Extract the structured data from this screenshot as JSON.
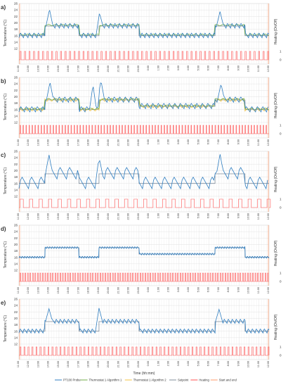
{
  "figure": {
    "x_axis_title": "Time (hh:mm)",
    "legend": [
      {
        "label": "PT100 Probe",
        "color": "#2f7ec1"
      },
      {
        "label": "Thermostat 1 Algorithm 1",
        "color": "#70ad47"
      },
      {
        "label": "Thermostat 1 Algorithm 2",
        "color": "#f5c342"
      },
      {
        "label": "Setpoint",
        "color": "#7f8c9a"
      },
      {
        "label": "Heating",
        "color": "#ff5252"
      },
      {
        "label": "Start and end",
        "color": "#ff9a6a"
      }
    ]
  },
  "chart_data": [
    {
      "type": "line",
      "panel_label": "a)",
      "ylabel": "Temperature (°C)",
      "y2label": "Heating (On/Off)",
      "ylim": [
        12,
        26
      ],
      "yticks": [
        12,
        14,
        16,
        18,
        20,
        22,
        24,
        26
      ],
      "y2ticks": [
        0,
        1
      ],
      "x_ticks": [
        "11:00",
        "12:00",
        "13:00",
        "14:00",
        "15:00",
        "16:00",
        "17:00",
        "18:00",
        "19:00",
        "20:00",
        "21:00",
        "22:00",
        "23:00",
        "0:00",
        "1:00",
        "2:00",
        "3:00",
        "4:00",
        "5:00",
        "6:00",
        "7:00",
        "8:00",
        "9:00",
        "10:00",
        "11:00",
        "12:00"
      ],
      "setpoint": [
        [
          0,
          16
        ],
        [
          2.6,
          16
        ],
        [
          2.6,
          19
        ],
        [
          6,
          19
        ],
        [
          6,
          16
        ],
        [
          8,
          16
        ],
        [
          8,
          19
        ],
        [
          12,
          19
        ],
        [
          12,
          16
        ],
        [
          19.6,
          16
        ],
        [
          19.6,
          19
        ],
        [
          22.6,
          19
        ],
        [
          22.6,
          16
        ],
        [
          25,
          16
        ]
      ],
      "probe": {
        "start": 0,
        "end": 25,
        "period": 0.45,
        "amplitude": 1.6,
        "base": 16.8,
        "spikes": [
          [
            3.05,
            24.2
          ],
          [
            8.05,
            23.0
          ],
          [
            20.1,
            23.5
          ]
        ]
      },
      "alg1": {
        "offset": 0.3,
        "amplitude": 0.4
      },
      "heating_period": 0.45,
      "heating_duty": 0.25
    },
    {
      "type": "line",
      "panel_label": "b)",
      "ylabel": "Temperature (°C)",
      "y2label": "Heating (On/Off)",
      "ylim": [
        12,
        26
      ],
      "yticks": [
        12,
        14,
        16,
        18,
        20,
        22,
        24,
        26
      ],
      "y2ticks": [
        0,
        1
      ],
      "x_ticks": [
        "11:00",
        "12:00",
        "13:00",
        "14:00",
        "15:00",
        "16:00",
        "17:00",
        "18:00",
        "19:00",
        "20:00",
        "21:00",
        "22:00",
        "23:00",
        "0:00",
        "1:00",
        "2:00",
        "3:00",
        "4:00",
        "5:00",
        "6:00",
        "7:00",
        "8:00",
        "9:00",
        "10:00",
        "11:00",
        "12:00"
      ],
      "setpoint": [
        [
          0,
          16
        ],
        [
          2.6,
          16
        ],
        [
          2.6,
          19
        ],
        [
          6,
          19
        ],
        [
          6,
          16
        ],
        [
          8,
          16
        ],
        [
          8,
          19
        ],
        [
          12,
          19
        ],
        [
          12,
          17
        ],
        [
          19.6,
          17
        ],
        [
          19.6,
          19
        ],
        [
          22.6,
          19
        ],
        [
          22.6,
          16
        ],
        [
          25,
          16
        ]
      ],
      "probe": {
        "start": 0,
        "end": 25,
        "period": 0.55,
        "amplitude": 1.8,
        "base": 17.0,
        "spikes": [
          [
            3.1,
            24.5
          ],
          [
            7.4,
            23.6
          ],
          [
            8.2,
            25.0
          ],
          [
            20.2,
            24.0
          ]
        ]
      },
      "alg1": {
        "offset": 0.2,
        "amplitude": 0.5
      },
      "alg2": {
        "offset": 0.0,
        "amplitude": 0.9
      },
      "heating_period": 0.3,
      "heating_duty": 0.2
    },
    {
      "type": "line",
      "panel_label": "c)",
      "ylabel": "Temperature (°C)",
      "y2label": "Heating (On/Off)",
      "ylim": [
        12,
        26
      ],
      "yticks": [
        12,
        14,
        16,
        18,
        20,
        22,
        24,
        26
      ],
      "y2ticks": [
        0,
        1
      ],
      "x_ticks": [
        "11:00",
        "12:00",
        "13:00",
        "14:00",
        "15:00",
        "16:00",
        "17:00",
        "18:00",
        "19:00",
        "20:00",
        "21:00",
        "22:00",
        "23:00",
        "0:00",
        "1:00",
        "2:00",
        "3:00",
        "4:00",
        "5:00",
        "6:00",
        "7:00",
        "8:00",
        "9:00",
        "10:00",
        "11:00",
        "12:00"
      ],
      "setpoint": [
        [
          0,
          16
        ],
        [
          2.6,
          16
        ],
        [
          2.6,
          19
        ],
        [
          6,
          19
        ],
        [
          6,
          16
        ],
        [
          8,
          16
        ],
        [
          8,
          19
        ],
        [
          12,
          19
        ],
        [
          12,
          16
        ],
        [
          19.6,
          16
        ],
        [
          19.6,
          19
        ],
        [
          22.6,
          19
        ],
        [
          22.6,
          16
        ],
        [
          25,
          16
        ]
      ],
      "probe": {
        "start": 0,
        "end": 25,
        "period": 0.95,
        "amplitude": 4.0,
        "base": 17.8,
        "spikes": [
          [
            3.0,
            25.0
          ],
          [
            8.0,
            24.2
          ],
          [
            20.1,
            25.2
          ]
        ]
      },
      "heating_period": 0.95,
      "heating_duty": 0.35
    },
    {
      "type": "line",
      "panel_label": "d)",
      "ylabel": "Temperature (°C)",
      "y2label": "Heating (On/Off)",
      "ylim": [
        12,
        26
      ],
      "yticks": [
        12,
        14,
        16,
        18,
        20,
        22,
        24,
        26
      ],
      "y2ticks": [
        0,
        1
      ],
      "x_ticks": [
        "11:00",
        "12:00",
        "13:00",
        "14:00",
        "15:00",
        "16:00",
        "17:00",
        "18:00",
        "19:00",
        "20:00",
        "21:00",
        "22:00",
        "23:00",
        "0:00",
        "1:00",
        "2:00",
        "3:00",
        "4:00",
        "5:00",
        "6:00",
        "7:00",
        "8:00",
        "9:00",
        "10:00",
        "11:00",
        "12:00"
      ],
      "setpoint": [
        [
          0,
          16
        ],
        [
          2.6,
          16
        ],
        [
          2.6,
          19
        ],
        [
          6,
          19
        ],
        [
          6,
          16
        ],
        [
          8,
          16
        ],
        [
          8,
          19
        ],
        [
          12,
          19
        ],
        [
          12,
          17
        ],
        [
          19.6,
          17
        ],
        [
          19.6,
          19
        ],
        [
          22.6,
          19
        ],
        [
          22.6,
          16
        ],
        [
          25,
          16
        ]
      ],
      "probe": {
        "start": 0,
        "end": 25,
        "period": 0.25,
        "amplitude": 0.6,
        "base": 16.6,
        "spikes": []
      },
      "heating_period": 0.25,
      "heating_duty": 0.3
    },
    {
      "type": "line",
      "panel_label": "e)",
      "ylabel": "Temperature (°C)",
      "y2label": "Heating (On/Off)",
      "ylim": [
        12,
        26
      ],
      "yticks": [
        12,
        14,
        16,
        18,
        20,
        22,
        24,
        26
      ],
      "y2ticks": [
        0,
        1
      ],
      "x_ticks": [
        "11:00",
        "12:00",
        "13:00",
        "14:00",
        "15:00",
        "16:00",
        "17:00",
        "18:00",
        "19:00",
        "20:00",
        "21:00",
        "22:00",
        "23:00",
        "0:00",
        "1:00",
        "2:00",
        "3:00",
        "4:00",
        "5:00",
        "6:00",
        "7:00",
        "8:00",
        "9:00",
        "10:00",
        "11:00",
        "12:00"
      ],
      "setpoint": [
        [
          0,
          16
        ],
        [
          2.6,
          16
        ],
        [
          2.6,
          19
        ],
        [
          6,
          19
        ],
        [
          6,
          16
        ],
        [
          8,
          16
        ],
        [
          8,
          19
        ],
        [
          12,
          19
        ],
        [
          12,
          16
        ],
        [
          19.6,
          16
        ],
        [
          19.6,
          19
        ],
        [
          22.6,
          19
        ],
        [
          22.6,
          16
        ],
        [
          25,
          16
        ]
      ],
      "probe": {
        "start": 0,
        "end": 25,
        "period": 0.4,
        "amplitude": 1.4,
        "base": 16.8,
        "spikes": [
          [
            3.0,
            23.0
          ],
          [
            8.0,
            23.2
          ],
          [
            20.0,
            22.8
          ]
        ]
      },
      "heating_period": 0.4,
      "heating_duty": 0.25
    }
  ]
}
